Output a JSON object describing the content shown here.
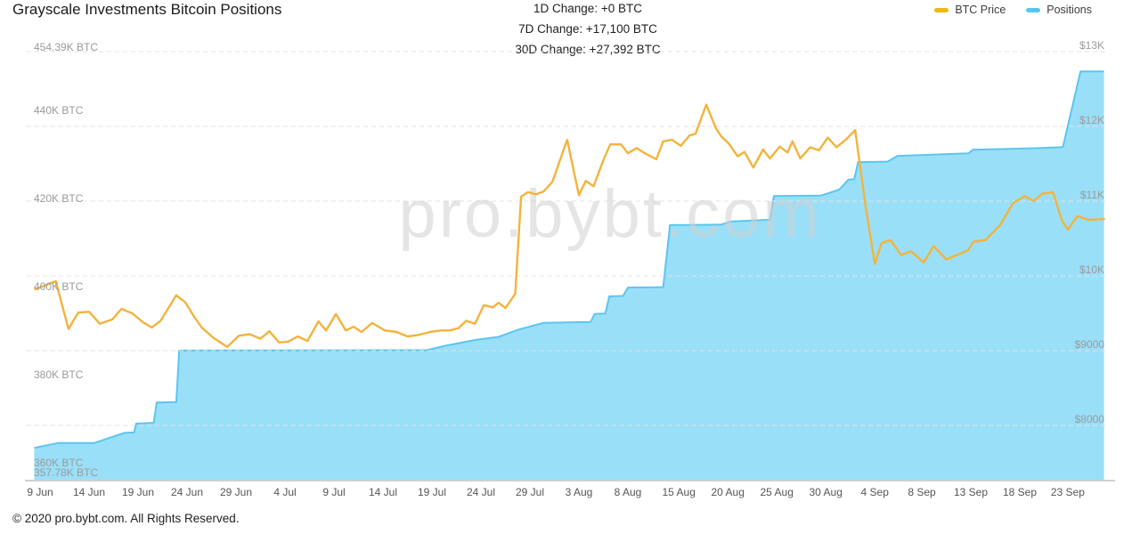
{
  "header": {
    "stats": {
      "d1": "1D Change: +0 BTC",
      "d7": "7D Change: +17,100 BTC",
      "d30": "30D Change: +27,392 BTC"
    }
  },
  "watermark": "pro.bybt.com",
  "footer": {
    "copyright": "© 2020 pro.bybt.com. All Rights Reserved."
  },
  "chart_data": {
    "type": "line+area",
    "title": "Grayscale Investments Bitcoin Positions",
    "grid": "horizontal-dashed",
    "legend_position": "top-right",
    "x_axis": {
      "unit": "date",
      "labels": [
        {
          "text": "9 Jun",
          "i": 0
        },
        {
          "text": "14 Jun",
          "i": 5
        },
        {
          "text": "19 Jun",
          "i": 10
        },
        {
          "text": "24 Jun",
          "i": 15
        },
        {
          "text": "29 Jun",
          "i": 20
        },
        {
          "text": "4 Jul",
          "i": 25
        },
        {
          "text": "9 Jul",
          "i": 30
        },
        {
          "text": "14 Jul",
          "i": 35
        },
        {
          "text": "19 Jul",
          "i": 40
        },
        {
          "text": "24 Jul",
          "i": 45
        },
        {
          "text": "29 Jul",
          "i": 50
        },
        {
          "text": "3 Aug",
          "i": 55
        },
        {
          "text": "8 Aug",
          "i": 60
        },
        {
          "text": "15 Aug",
          "i": 65.2
        },
        {
          "text": "20 Aug",
          "i": 70.2
        },
        {
          "text": "25 Aug",
          "i": 75.2
        },
        {
          "text": "30 Aug",
          "i": 80.2
        },
        {
          "text": "4 Sep",
          "i": 85.2
        },
        {
          "text": "8 Sep",
          "i": 90
        },
        {
          "text": "13 Sep",
          "i": 95
        },
        {
          "text": "18 Sep",
          "i": 100
        },
        {
          "text": "23 Sep",
          "i": 104.9
        }
      ]
    },
    "left_axis": {
      "name": "Positions",
      "unit": "K BTC",
      "range": [
        357.78,
        454.39
      ],
      "labels": [
        {
          "text": "454.39K BTC",
          "value": 454.39
        },
        {
          "text": "440K BTC",
          "value": 440
        },
        {
          "text": "420K BTC",
          "value": 420
        },
        {
          "text": "400K BTC",
          "value": 400
        },
        {
          "text": "380K BTC",
          "value": 380
        },
        {
          "text": "360K BTC",
          "value": 360
        },
        {
          "text": "357.78K BTC",
          "value": 357.78
        }
      ]
    },
    "right_axis": {
      "name": "BTC Price",
      "unit": "USD",
      "range": [
        8000,
        13000
      ],
      "labels": [
        {
          "text": "$13K",
          "value": 13000
        },
        {
          "text": "$12K",
          "value": 12000
        },
        {
          "text": "$11K",
          "value": 11000
        },
        {
          "text": "$10K",
          "value": 10000
        },
        {
          "text": "$9000",
          "value": 9000
        },
        {
          "text": "$8000",
          "value": 8000
        }
      ]
    },
    "series": [
      {
        "name": "BTC Price",
        "type": "line",
        "axis": "right",
        "color": "#F3B33C",
        "legend_color": "#F0B90B",
        "points": [
          [
            -0.5,
            9820
          ],
          [
            1.6,
            9930
          ],
          [
            2.9,
            9290
          ],
          [
            3.9,
            9510
          ],
          [
            5,
            9520
          ],
          [
            6.1,
            9360
          ],
          [
            7.4,
            9420
          ],
          [
            8.3,
            9560
          ],
          [
            9.4,
            9500
          ],
          [
            10.5,
            9380
          ],
          [
            11.4,
            9310
          ],
          [
            12.3,
            9400
          ],
          [
            13.9,
            9740
          ],
          [
            14.8,
            9650
          ],
          [
            15.7,
            9460
          ],
          [
            16.5,
            9310
          ],
          [
            17.7,
            9170
          ],
          [
            19.1,
            9050
          ],
          [
            20.3,
            9200
          ],
          [
            21.4,
            9220
          ],
          [
            22.5,
            9160
          ],
          [
            23.4,
            9260
          ],
          [
            24.4,
            9110
          ],
          [
            25.3,
            9120
          ],
          [
            26.3,
            9190
          ],
          [
            27.3,
            9130
          ],
          [
            28.4,
            9390
          ],
          [
            29.2,
            9270
          ],
          [
            30.2,
            9490
          ],
          [
            31.2,
            9270
          ],
          [
            32,
            9320
          ],
          [
            32.8,
            9250
          ],
          [
            33.9,
            9370
          ],
          [
            35.2,
            9270
          ],
          [
            36.4,
            9250
          ],
          [
            37.5,
            9190
          ],
          [
            38.6,
            9210
          ],
          [
            39.8,
            9250
          ],
          [
            40.9,
            9270
          ],
          [
            41.8,
            9270
          ],
          [
            42.7,
            9300
          ],
          [
            43.5,
            9400
          ],
          [
            44.4,
            9360
          ],
          [
            45.3,
            9610
          ],
          [
            46.2,
            9580
          ],
          [
            46.8,
            9640
          ],
          [
            47.5,
            9570
          ],
          [
            48.5,
            9760
          ],
          [
            49.1,
            11060
          ],
          [
            49.8,
            11120
          ],
          [
            50.6,
            11090
          ],
          [
            51.4,
            11130
          ],
          [
            52.3,
            11260
          ],
          [
            53.8,
            11820
          ],
          [
            55,
            11080
          ],
          [
            55.7,
            11270
          ],
          [
            56.5,
            11200
          ],
          [
            57.5,
            11550
          ],
          [
            58.2,
            11760
          ],
          [
            59.3,
            11760
          ],
          [
            60,
            11640
          ],
          [
            60.9,
            11710
          ],
          [
            61.6,
            11650
          ],
          [
            62.9,
            11560
          ],
          [
            63.6,
            11800
          ],
          [
            64.5,
            11820
          ],
          [
            65.4,
            11740
          ],
          [
            66.3,
            11880
          ],
          [
            66.9,
            11900
          ],
          [
            68,
            12290
          ],
          [
            69,
            11970
          ],
          [
            69.5,
            11870
          ],
          [
            70.3,
            11770
          ],
          [
            71.2,
            11600
          ],
          [
            71.9,
            11660
          ],
          [
            72.8,
            11450
          ],
          [
            73.8,
            11690
          ],
          [
            74.5,
            11570
          ],
          [
            75.5,
            11730
          ],
          [
            76.3,
            11650
          ],
          [
            76.8,
            11800
          ],
          [
            77.6,
            11570
          ],
          [
            78.6,
            11720
          ],
          [
            79.5,
            11680
          ],
          [
            80.4,
            11850
          ],
          [
            81.3,
            11720
          ],
          [
            82.3,
            11830
          ],
          [
            83.2,
            11950
          ],
          [
            84.3,
            10900
          ],
          [
            85.2,
            10160
          ],
          [
            85.9,
            10440
          ],
          [
            86.8,
            10480
          ],
          [
            87.9,
            10280
          ],
          [
            88.9,
            10330
          ],
          [
            90.2,
            10180
          ],
          [
            91.2,
            10400
          ],
          [
            92.5,
            10220
          ],
          [
            93.6,
            10280
          ],
          [
            94.7,
            10340
          ],
          [
            95.3,
            10460
          ],
          [
            96.5,
            10480
          ],
          [
            98,
            10680
          ],
          [
            99.3,
            10970
          ],
          [
            100.5,
            11070
          ],
          [
            101.4,
            11000
          ],
          [
            102.3,
            11100
          ],
          [
            103.4,
            11120
          ],
          [
            104.3,
            10740
          ],
          [
            104.9,
            10620
          ],
          [
            105.9,
            10800
          ],
          [
            107,
            10750
          ],
          [
            108.6,
            10760
          ]
        ]
      },
      {
        "name": "Positions",
        "type": "area",
        "axis": "left",
        "color": "#5BC6EF",
        "legend_color": "#55C8F2",
        "fill": "#9ADFF8",
        "points": [
          [
            -0.6,
            363.8
          ],
          [
            1.8,
            364.9
          ],
          [
            5.5,
            364.9
          ],
          [
            8.6,
            367.2
          ],
          [
            9.6,
            367.3
          ],
          [
            9.8,
            369.3
          ],
          [
            11.6,
            369.5
          ],
          [
            11.9,
            374.1
          ],
          [
            13.9,
            374.2
          ],
          [
            14.2,
            385.9
          ],
          [
            39.5,
            386.0
          ],
          [
            41.4,
            387.0
          ],
          [
            44.4,
            388.3
          ],
          [
            46.8,
            389.0
          ],
          [
            48.9,
            390.7
          ],
          [
            51.4,
            392.2
          ],
          [
            56.2,
            392.4
          ],
          [
            56.6,
            394.2
          ],
          [
            57.7,
            394.3
          ],
          [
            58.1,
            398.2
          ],
          [
            59.5,
            398.3
          ],
          [
            60,
            400.2
          ],
          [
            63.6,
            400.3
          ],
          [
            64.3,
            414.4
          ],
          [
            69.5,
            414.5
          ],
          [
            70.5,
            415.2
          ],
          [
            74.5,
            415.6
          ],
          [
            74.9,
            421.0
          ],
          [
            79.7,
            421.1
          ],
          [
            80.3,
            421.5
          ],
          [
            81.6,
            422.5
          ],
          [
            82.5,
            424.7
          ],
          [
            83.1,
            424.8
          ],
          [
            83.5,
            428.7
          ],
          [
            86.5,
            428.8
          ],
          [
            87.5,
            430.1
          ],
          [
            94.8,
            430.7
          ],
          [
            95.2,
            431.5
          ],
          [
            102.3,
            431.9
          ],
          [
            104.4,
            432.1
          ],
          [
            106.2,
            449.3
          ],
          [
            108.6,
            449.3
          ]
        ]
      }
    ]
  }
}
